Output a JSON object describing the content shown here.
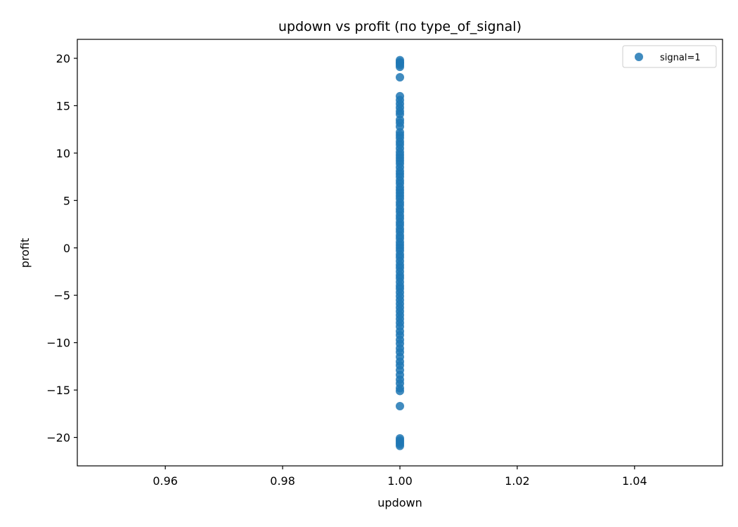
{
  "chart_data": {
    "type": "scatter",
    "title": "updown vs profit (по type_of_signal)",
    "xlabel": "updown",
    "ylabel": "profit",
    "xlim": [
      0.945,
      1.055
    ],
    "ylim": [
      -23,
      22
    ],
    "x_ticks": [
      {
        "value": 0.96,
        "label": "0.96"
      },
      {
        "value": 0.98,
        "label": "0.98"
      },
      {
        "value": 1.0,
        "label": "1.00"
      },
      {
        "value": 1.02,
        "label": "1.02"
      },
      {
        "value": 1.04,
        "label": "1.04"
      }
    ],
    "y_ticks": [
      {
        "value": 20,
        "label": "20"
      },
      {
        "value": 15,
        "label": "15"
      },
      {
        "value": 10,
        "label": "10"
      },
      {
        "value": 5,
        "label": "5"
      },
      {
        "value": 0,
        "label": "0"
      },
      {
        "value": -5,
        "label": "−5"
      },
      {
        "value": -10,
        "label": "−10"
      },
      {
        "value": -15,
        "label": "−15"
      },
      {
        "value": -20,
        "label": "−20"
      }
    ],
    "grid": false,
    "legend_position": "top-right",
    "series": [
      {
        "name": "signal=1",
        "color": "#1f77b4",
        "x": 1.0,
        "y": [
          19.8,
          19.6,
          19.5,
          19.3,
          19.1,
          18.0,
          16.0,
          15.6,
          15.2,
          14.8,
          14.4,
          14.1,
          13.5,
          13.2,
          12.8,
          12.2,
          11.9,
          11.6,
          11.2,
          10.9,
          10.5,
          10.1,
          9.8,
          9.5,
          9.2,
          8.9,
          8.5,
          8.1,
          7.8,
          7.5,
          7.1,
          6.8,
          6.4,
          6.1,
          5.8,
          5.5,
          5.2,
          4.8,
          4.5,
          4.1,
          3.8,
          3.4,
          3.1,
          2.7,
          2.4,
          2.0,
          1.7,
          1.3,
          1.0,
          0.6,
          0.3,
          0.0,
          -0.3,
          -0.7,
          -1.0,
          -1.4,
          -1.8,
          -2.1,
          -2.5,
          -2.9,
          -3.2,
          -3.6,
          -4.0,
          -4.3,
          -4.7,
          -5.1,
          -5.5,
          -5.9,
          -6.3,
          -6.7,
          -7.1,
          -7.5,
          -7.9,
          -8.3,
          -8.8,
          -9.2,
          -9.7,
          -10.1,
          -10.6,
          -11.0,
          -11.5,
          -12.0,
          -12.4,
          -12.9,
          -13.4,
          -13.9,
          -14.3,
          -14.8,
          -15.1,
          -16.7,
          -20.1,
          -20.3,
          -20.5,
          -20.7,
          -20.9
        ]
      }
    ]
  }
}
